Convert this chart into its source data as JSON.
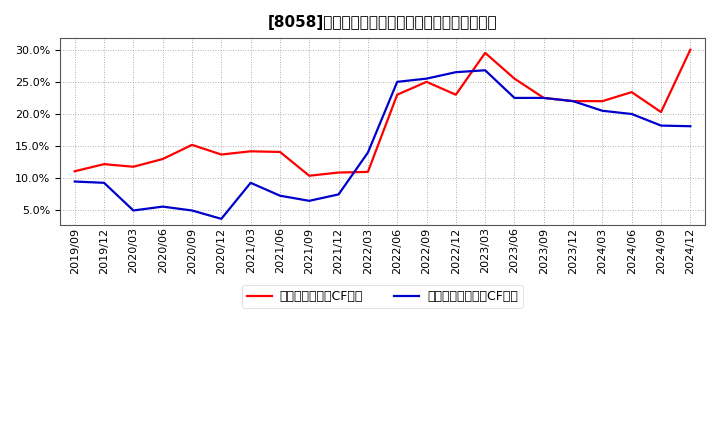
{
  "title": "[8058]　有利子負債キャッシュフロー比率の推移",
  "legend_label_red": "有利子負債営業CF比率",
  "legend_label_blue": "有利子負債フリーCF比率",
  "line_color_red": "#ff0000",
  "line_color_blue": "#0000cc",
  "ylim_low": 0.028,
  "ylim_high": 0.318,
  "ytick_vals": [
    0.05,
    0.1,
    0.15,
    0.2,
    0.25,
    0.3
  ],
  "plot_bg": "#ffffff",
  "fig_bg": "#ffffff",
  "grid_color": "#999999",
  "dates": [
    "2019/09",
    "2019/12",
    "2020/03",
    "2020/06",
    "2020/09",
    "2020/12",
    "2021/03",
    "2021/06",
    "2021/09",
    "2021/12",
    "2022/03",
    "2022/06",
    "2022/09",
    "2022/12",
    "2023/03",
    "2023/06",
    "2023/09",
    "2023/12",
    "2024/03",
    "2024/06",
    "2024/09",
    "2024/12"
  ],
  "values_red": [
    0.111,
    0.122,
    0.118,
    0.13,
    0.152,
    0.137,
    0.142,
    0.141,
    0.104,
    0.109,
    0.11,
    0.23,
    0.25,
    0.23,
    0.295,
    0.255,
    0.225,
    0.22,
    0.22,
    0.234,
    0.203,
    0.3
  ],
  "values_blue": [
    0.095,
    0.093,
    0.05,
    0.056,
    0.05,
    0.037,
    0.093,
    0.073,
    0.065,
    0.075,
    0.14,
    0.25,
    0.255,
    0.265,
    0.268,
    0.225,
    0.225,
    0.22,
    0.205,
    0.2,
    0.182,
    0.181
  ],
  "linewidth": 1.6,
  "title_fontsize": 11,
  "tick_fontsize": 8,
  "legend_fontsize": 9
}
